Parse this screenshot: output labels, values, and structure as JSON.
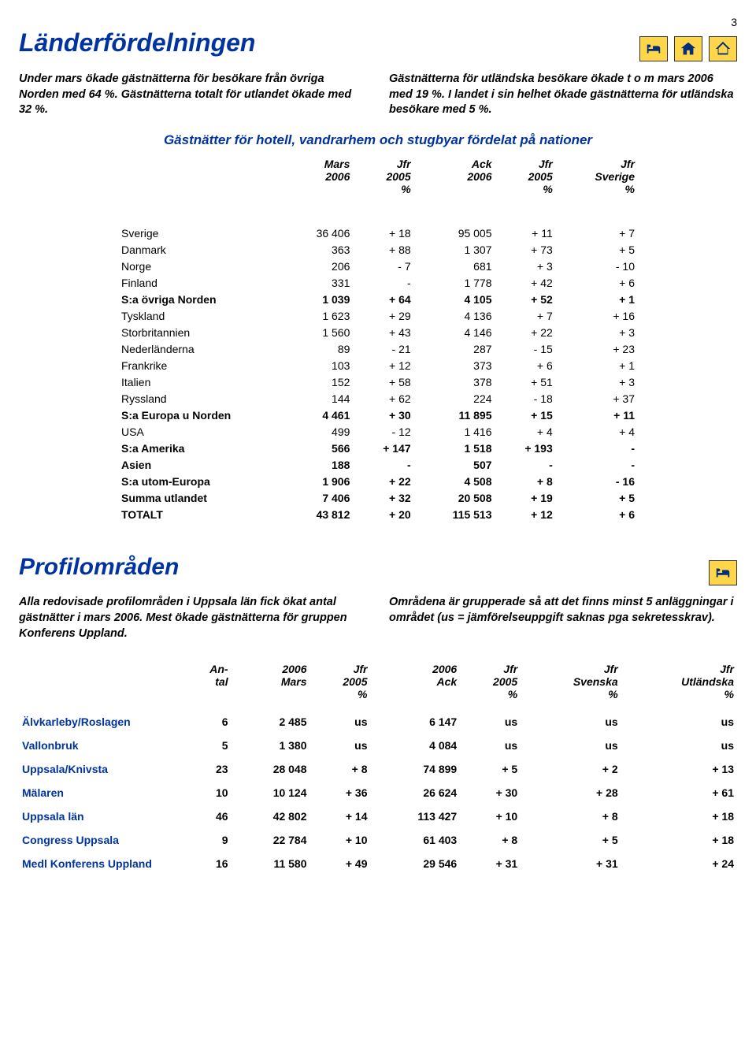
{
  "page_number": "3",
  "section1": {
    "title": "Länderfördelningen",
    "left_para": "Under mars ökade gästnätterna för besökare från övriga Norden med 64 %. Gästnätterna totalt för utlandet ökade med 32 %.",
    "right_para": "Gästnätterna för utländska besökare ökade t o m mars 2006 med 19 %. I landet i sin helhet ökade gästnätterna för utländska besökare med 5 %.",
    "subtitle": "Gästnätter för hotell, vandrarhem och stugbyar fördelat på nationer",
    "headers": {
      "c1": "",
      "c2": "Mars\n2006",
      "c3": "Jfr\n2005\n%",
      "c4": "Ack\n2006",
      "c5": "Jfr\n2005\n%",
      "c6": "Jfr\nSverige\n%"
    },
    "rows": [
      {
        "country": "Sverige",
        "mars": "36 406",
        "jfr1": "+ 18",
        "ack": "95 005",
        "jfr2": "+ 11",
        "jfr3": "+ 7",
        "bold": false
      },
      {
        "country": "Danmark",
        "mars": "363",
        "jfr1": "+ 88",
        "ack": "1 307",
        "jfr2": "+ 73",
        "jfr3": "+ 5",
        "bold": false
      },
      {
        "country": "Norge",
        "mars": "206",
        "jfr1": "- 7",
        "ack": "681",
        "jfr2": "+ 3",
        "jfr3": "- 10",
        "bold": false
      },
      {
        "country": "Finland",
        "mars": "331",
        "jfr1": "-",
        "ack": "1 778",
        "jfr2": "+ 42",
        "jfr3": "+ 6",
        "bold": false
      },
      {
        "country": "S:a övriga Norden",
        "mars": "1 039",
        "jfr1": "+ 64",
        "ack": "4 105",
        "jfr2": "+ 52",
        "jfr3": "+ 1",
        "bold": true
      },
      {
        "country": "Tyskland",
        "mars": "1 623",
        "jfr1": "+ 29",
        "ack": "4 136",
        "jfr2": "+ 7",
        "jfr3": "+ 16",
        "bold": false
      },
      {
        "country": "Storbritannien",
        "mars": "1 560",
        "jfr1": "+ 43",
        "ack": "4 146",
        "jfr2": "+ 22",
        "jfr3": "+ 3",
        "bold": false
      },
      {
        "country": "Nederländerna",
        "mars": "89",
        "jfr1": "- 21",
        "ack": "287",
        "jfr2": "- 15",
        "jfr3": "+ 23",
        "bold": false
      },
      {
        "country": "Frankrike",
        "mars": "103",
        "jfr1": "+ 12",
        "ack": "373",
        "jfr2": "+ 6",
        "jfr3": "+ 1",
        "bold": false
      },
      {
        "country": "Italien",
        "mars": "152",
        "jfr1": "+ 58",
        "ack": "378",
        "jfr2": "+ 51",
        "jfr3": "+ 3",
        "bold": false
      },
      {
        "country": "Ryssland",
        "mars": "144",
        "jfr1": "+ 62",
        "ack": "224",
        "jfr2": "- 18",
        "jfr3": "+ 37",
        "bold": false
      },
      {
        "country": "S:a Europa u Norden",
        "mars": "4 461",
        "jfr1": "+ 30",
        "ack": "11 895",
        "jfr2": "+ 15",
        "jfr3": "+ 11",
        "bold": true
      },
      {
        "country": "USA",
        "mars": "499",
        "jfr1": "- 12",
        "ack": "1 416",
        "jfr2": "+ 4",
        "jfr3": "+ 4",
        "bold": false
      },
      {
        "country": "S:a Amerika",
        "mars": "566",
        "jfr1": "+ 147",
        "ack": "1 518",
        "jfr2": "+ 193",
        "jfr3": "-",
        "bold": true
      },
      {
        "country": "Asien",
        "mars": "188",
        "jfr1": "-",
        "ack": "507",
        "jfr2": "-",
        "jfr3": "-",
        "bold": true
      },
      {
        "country": "S:a utom-Europa",
        "mars": "1 906",
        "jfr1": "+ 22",
        "ack": "4 508",
        "jfr2": "+ 8",
        "jfr3": "- 16",
        "bold": true
      },
      {
        "country": "Summa utlandet",
        "mars": "7 406",
        "jfr1": "+ 32",
        "ack": "20 508",
        "jfr2": "+ 19",
        "jfr3": "+ 5",
        "bold": true
      },
      {
        "country": "TOTALT",
        "mars": "43 812",
        "jfr1": "+ 20",
        "ack": "115 513",
        "jfr2": "+ 12",
        "jfr3": "+ 6",
        "bold": true
      }
    ]
  },
  "section2": {
    "title": "Profilområden",
    "left_para": "Alla redovisade profilområden i Uppsala län fick ökat antal gästnätter i mars 2006. Mest ökade gästnätterna för gruppen Konferens Uppland.",
    "right_para": "Områdena är grupperade så att det finns minst 5 anläggningar i området (us = jämförelseuppgift saknas pga sekretesskrav).",
    "headers": {
      "c1": "",
      "c2": "An-\ntal",
      "c3": "2006\nMars",
      "c4": "Jfr\n2005\n%",
      "c5": "2006\nAck",
      "c6": "Jfr\n2005\n%",
      "c7": "Jfr\nSvenska\n%",
      "c8": "Jfr\nUtländska\n%"
    },
    "rows": [
      {
        "region": "Älvkarleby/Roslagen",
        "antal": "6",
        "mars": "2 485",
        "jfr1": "us",
        "ack": "6 147",
        "jfr2": "us",
        "jfr3": "us",
        "jfr4": "us"
      },
      {
        "region": "Vallonbruk",
        "antal": "5",
        "mars": "1 380",
        "jfr1": "us",
        "ack": "4 084",
        "jfr2": "us",
        "jfr3": "us",
        "jfr4": "us"
      },
      {
        "region": "Uppsala/Knivsta",
        "antal": "23",
        "mars": "28 048",
        "jfr1": "+ 8",
        "ack": "74 899",
        "jfr2": "+ 5",
        "jfr3": "+ 2",
        "jfr4": "+ 13"
      },
      {
        "region": "Mälaren",
        "antal": "10",
        "mars": "10 124",
        "jfr1": "+ 36",
        "ack": "26 624",
        "jfr2": "+ 30",
        "jfr3": "+ 28",
        "jfr4": "+ 61"
      },
      {
        "region": "Uppsala län",
        "antal": "46",
        "mars": "42 802",
        "jfr1": "+ 14",
        "ack": "113 427",
        "jfr2": "+ 10",
        "jfr3": "+ 8",
        "jfr4": "+ 18"
      },
      {
        "region": "Congress Uppsala",
        "antal": "9",
        "mars": "22 784",
        "jfr1": "+ 10",
        "ack": "61 403",
        "jfr2": "+ 8",
        "jfr3": "+ 5",
        "jfr4": "+ 18"
      },
      {
        "region": "Medl Konferens Uppland",
        "antal": "16",
        "mars": "11 580",
        "jfr1": "+ 49",
        "ack": "29 546",
        "jfr2": "+ 31",
        "jfr3": "+ 31",
        "jfr4": "+ 24"
      }
    ]
  },
  "colors": {
    "heading": "#0033a0",
    "icon_bg": "#ffd54a",
    "icon_fg": "#032f7a"
  }
}
